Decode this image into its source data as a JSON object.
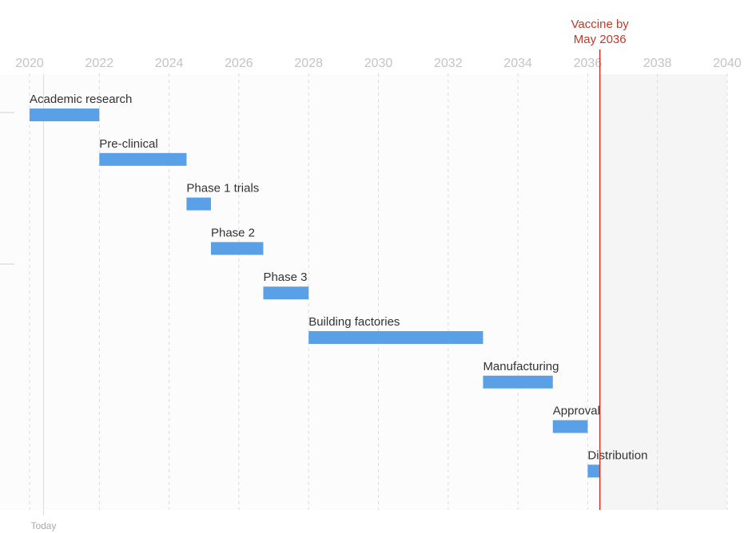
{
  "chart_data": {
    "type": "bar",
    "orientation": "horizontal-timeline",
    "xlim": [
      2020,
      2040
    ],
    "x_ticks": [
      2020,
      2022,
      2024,
      2026,
      2028,
      2030,
      2032,
      2034,
      2036,
      2038,
      2040
    ],
    "x_tick_labels": [
      "2020",
      "2022",
      "2024",
      "2026",
      "2028",
      "2030",
      "2032",
      "2034",
      "2036",
      "2038",
      "2040"
    ],
    "tasks": [
      {
        "label": "Academic research",
        "start": 2020.0,
        "end": 2022.0
      },
      {
        "label": "Pre-clinical",
        "start": 2022.0,
        "end": 2024.5
      },
      {
        "label": "Phase 1 trials",
        "start": 2024.5,
        "end": 2025.2
      },
      {
        "label": "Phase 2",
        "start": 2025.2,
        "end": 2026.7
      },
      {
        "label": "Phase 3",
        "start": 2026.7,
        "end": 2028.0
      },
      {
        "label": "Building factories",
        "start": 2028.0,
        "end": 2033.0
      },
      {
        "label": "Manufacturing",
        "start": 2033.0,
        "end": 2035.0
      },
      {
        "label": "Approval",
        "start": 2035.0,
        "end": 2036.0
      },
      {
        "label": "Distribution",
        "start": 2036.0,
        "end": 2036.35
      }
    ],
    "today": {
      "label": "Today",
      "x": 2020.4
    },
    "target": {
      "label_line1": "Vaccine by",
      "label_line2": "May 2036",
      "x": 2036.35
    },
    "grid": true,
    "colors": {
      "bar": "#5aa0e6",
      "target": "#c0392b",
      "after_target_shade": "#f5f5f5",
      "plot_bg": "#fcfcfc"
    }
  }
}
